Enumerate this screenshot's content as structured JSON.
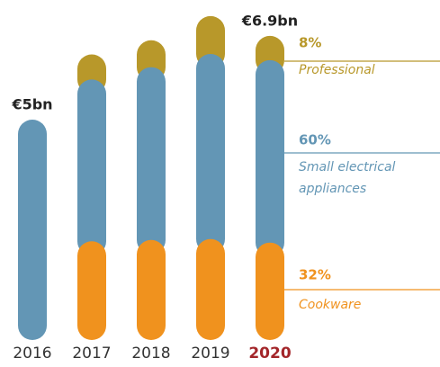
{
  "chart_data": {
    "type": "stacked_bar",
    "categories": [
      "2016",
      "2017",
      "2018",
      "2019",
      "2020"
    ],
    "category_styles": [
      {
        "color": "#333333",
        "bold": false
      },
      {
        "color": "#333333",
        "bold": false
      },
      {
        "color": "#333333",
        "bold": false
      },
      {
        "color": "#333333",
        "bold": false
      },
      {
        "color": "#a3262a",
        "bold": true
      }
    ],
    "series": [
      {
        "name": "Cookware",
        "color": "#f0921e",
        "values": [
          null,
          2.24,
          2.27,
          2.29,
          2.21
        ],
        "share": {
          "value": 32,
          "label": "32%"
        }
      },
      {
        "name": "Small electrical appliances",
        "color": "#6396b5",
        "values": [
          5,
          3.67,
          3.92,
          4.2,
          4.14
        ],
        "share": {
          "value": 60,
          "label": "60%"
        }
      },
      {
        "name": "Professional",
        "color": "#b8982a",
        "values": [
          null,
          0.57,
          0.61,
          0.86,
          0.55
        ],
        "share": {
          "value": 8,
          "label": "8%"
        }
      }
    ],
    "totals": {
      "values": [
        5,
        null,
        null,
        null,
        6.9
      ],
      "value_labels": [
        "€5bn",
        null,
        null,
        null,
        "€6.9bn"
      ]
    }
  }
}
